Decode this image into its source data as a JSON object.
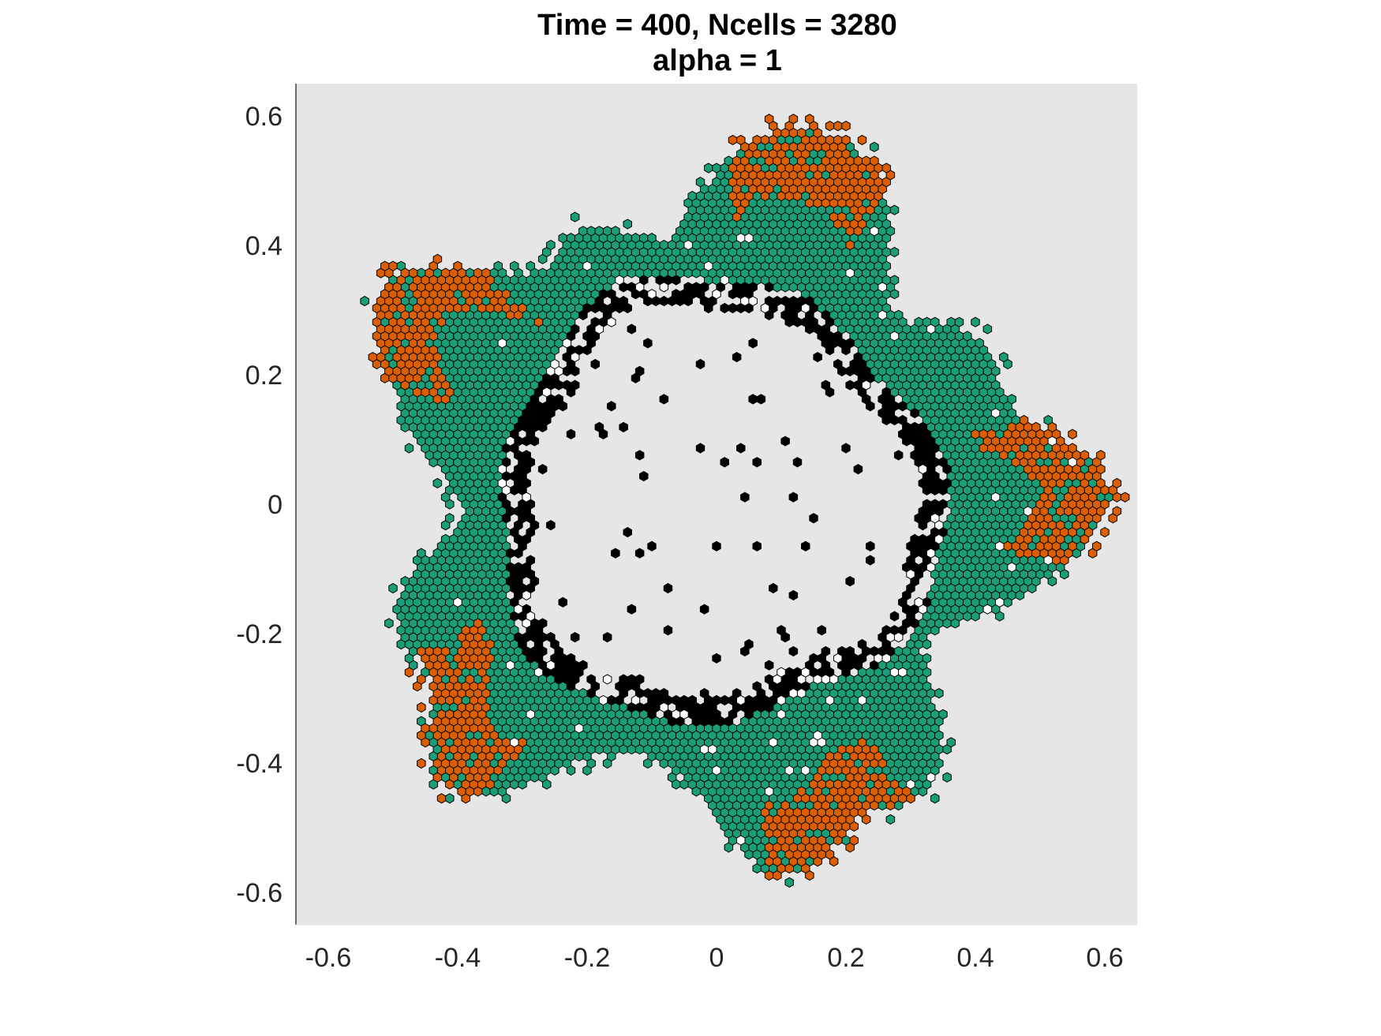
{
  "chart_data": {
    "type": "scatter",
    "title": [
      "Time = 400, Ncells = 3280",
      "alpha = 1"
    ],
    "xlabel": "",
    "ylabel": "",
    "xlim": [
      -0.65,
      0.65
    ],
    "ylim": [
      -0.65,
      0.65
    ],
    "x_ticks": [
      "-0.6",
      "-0.4",
      "-0.2",
      "0",
      "0.2",
      "0.4",
      "0.6"
    ],
    "y_ticks": [
      "0.6",
      "0.4",
      "0.2",
      "0",
      "-0.2",
      "-0.4",
      "-0.6"
    ],
    "grid": false,
    "background_color": "#e6e6e6",
    "marker": "hexagon",
    "description_counts": {
      "Ncells": 3280
    },
    "series": [
      {
        "color": "#1b9e77",
        "description": "green cells (bulk of ring)"
      },
      {
        "color": "#d95f02",
        "description": "orange cells (outer lobe tips)"
      },
      {
        "color": "#000000",
        "description": "black cells (inner boundary)"
      },
      {
        "color": "#ffffff",
        "description": "white cells (scattered)"
      }
    ]
  }
}
